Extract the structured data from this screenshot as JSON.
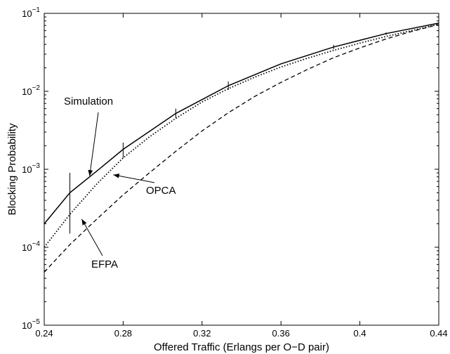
{
  "chart_data": {
    "type": "line",
    "xlabel": "Offered Traffic (Erlangs per O−D pair)",
    "ylabel": "Blocking Probability",
    "x_scale": "linear",
    "y_scale": "log",
    "xlim": [
      0.24,
      0.44
    ],
    "ylim": [
      1e-05,
      0.1
    ],
    "grid": false,
    "x_ticks": [
      0.24,
      0.28,
      0.32,
      0.36,
      0.4,
      0.44
    ],
    "x_tick_labels": [
      "0.24",
      "0.28",
      "0.32",
      "0.36",
      "0.4",
      "0.44"
    ],
    "y_ticks": [
      1e-05,
      0.0001,
      0.001,
      0.01,
      0.1
    ],
    "y_tick_labels": [
      {
        "base": "10",
        "exp": "−5"
      },
      {
        "base": "10",
        "exp": "−4"
      },
      {
        "base": "10",
        "exp": "−3"
      },
      {
        "base": "10",
        "exp": "−2"
      },
      {
        "base": "10",
        "exp": "−1"
      }
    ],
    "series": [
      {
        "name": "Simulation",
        "line_style": "solid",
        "x": [
          0.24,
          0.253,
          0.2667,
          0.28,
          0.3067,
          0.3333,
          0.36,
          0.3867,
          0.4133,
          0.44
        ],
        "y": [
          0.0002,
          0.0005,
          0.00095,
          0.0018,
          0.0052,
          0.0118,
          0.0225,
          0.037,
          0.055,
          0.075
        ],
        "error_bars": [
          {
            "x": 0.253,
            "low": 0.00015,
            "high": 0.0009
          },
          {
            "x": 0.28,
            "low": 0.0014,
            "high": 0.0022
          },
          {
            "x": 0.3067,
            "low": 0.0045,
            "high": 0.006
          },
          {
            "x": 0.3333,
            "low": 0.0104,
            "high": 0.0134
          },
          {
            "x": 0.3867,
            "low": 0.0345,
            "high": 0.0395
          },
          {
            "x": 0.4133,
            "low": 0.053,
            "high": 0.057
          }
        ]
      },
      {
        "name": "OPCA",
        "line_style": "dotted",
        "x": [
          0.24,
          0.2533,
          0.2667,
          0.28,
          0.2933,
          0.3067,
          0.32,
          0.3333,
          0.3467,
          0.36,
          0.3733,
          0.3867,
          0.4,
          0.4133,
          0.4267,
          0.44
        ],
        "y": [
          0.0001,
          0.00027,
          0.00065,
          0.0014,
          0.0026,
          0.0045,
          0.0073,
          0.0108,
          0.0152,
          0.0205,
          0.0265,
          0.0335,
          0.0415,
          0.0505,
          0.0605,
          0.0725
        ]
      },
      {
        "name": "EFPA",
        "line_style": "dashed",
        "x": [
          0.24,
          0.2533,
          0.2667,
          0.28,
          0.2933,
          0.3067,
          0.32,
          0.3333,
          0.3467,
          0.36,
          0.3733,
          0.3867,
          0.4,
          0.4133,
          0.4267,
          0.44
        ],
        "y": [
          4.8e-05,
          0.00011,
          0.00023,
          0.00047,
          0.0009,
          0.0017,
          0.0031,
          0.0053,
          0.0086,
          0.013,
          0.019,
          0.027,
          0.036,
          0.047,
          0.059,
          0.072
        ]
      }
    ],
    "annotations": [
      {
        "text": "Simulation",
        "target_series": "Simulation",
        "target": [
          0.263,
          0.00082
        ]
      },
      {
        "text": "OPCA",
        "target_series": "OPCA",
        "target": [
          0.275,
          0.00085
        ]
      },
      {
        "text": "EFPA",
        "target_series": "EFPA",
        "target": [
          0.259,
          0.00023
        ]
      }
    ]
  }
}
